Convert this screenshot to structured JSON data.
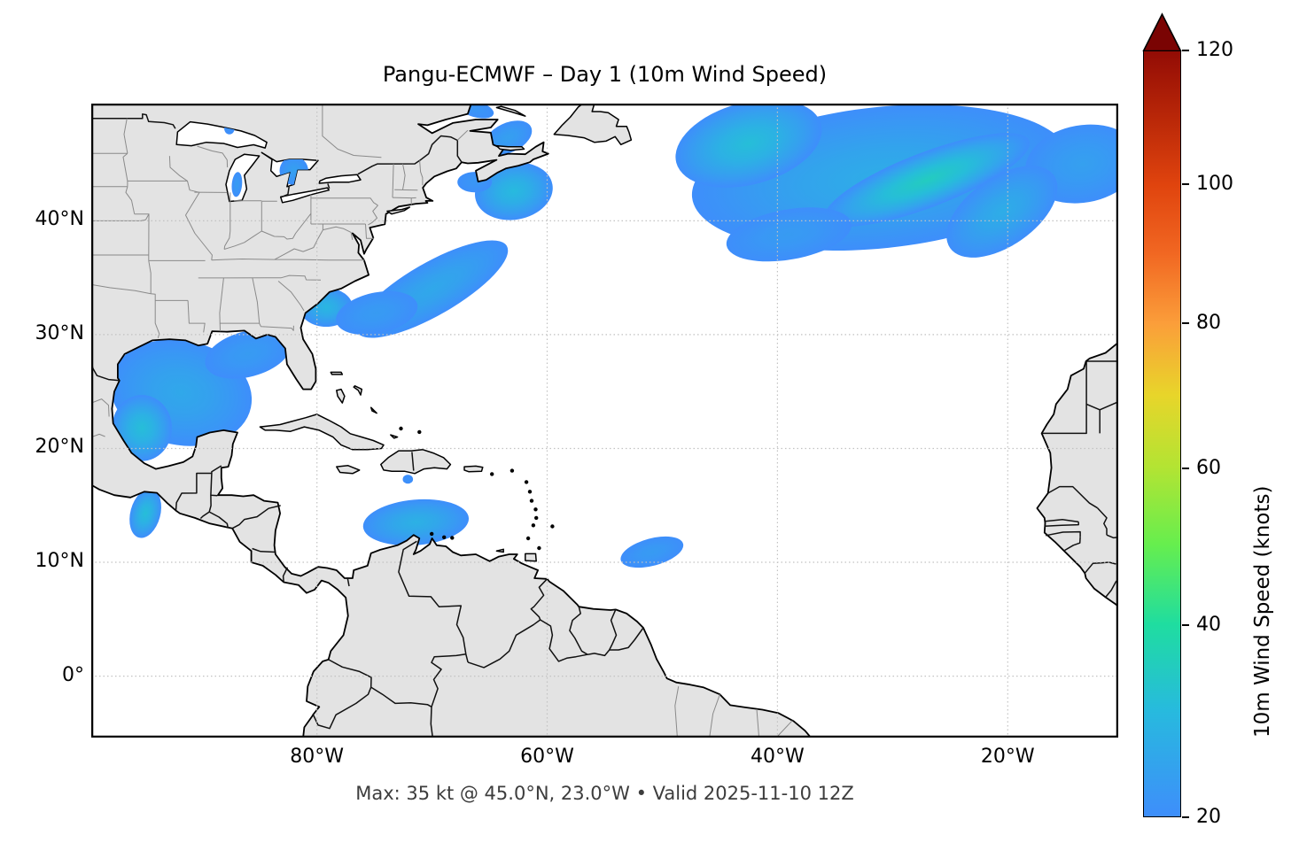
{
  "figure": {
    "title": "Pangu-ECMWF – Day 1 (10m Wind Speed)",
    "caption": "Max: 35 kt @ 45.0°N, 23.0°W • Valid 2025-11-10 12Z",
    "background": "#ffffff"
  },
  "map": {
    "extent": {
      "west": -99.6,
      "east": -10.4,
      "south": -5.4,
      "north": 50.3
    },
    "land_color": "#e3e3e3",
    "ocean_color": "#ffffff",
    "coast_color": "#000000",
    "country_border_color": "#111111",
    "state_border_color": "#8a8a8a",
    "grid_color": "#c2c2c2",
    "frame_color": "#000000"
  },
  "axes": {
    "x_ticks": [
      {
        "label": "80°W",
        "lon": -80
      },
      {
        "label": "60°W",
        "lon": -60
      },
      {
        "label": "40°W",
        "lon": -40
      },
      {
        "label": "20°W",
        "lon": -20
      }
    ],
    "y_ticks": [
      {
        "label": "40°N",
        "lat": 40
      },
      {
        "label": "30°N",
        "lat": 30
      },
      {
        "label": "20°N",
        "lat": 20
      },
      {
        "label": "10°N",
        "lat": 10
      },
      {
        "label": "0°",
        "lat": 0
      }
    ],
    "grid_lons": [
      -80,
      -60,
      -40,
      -20
    ],
    "grid_lats": [
      0,
      10,
      20,
      30,
      40
    ]
  },
  "colorbar": {
    "label": "10m Wind Speed (knots)",
    "units": "knots",
    "min": 20,
    "max": 120,
    "extend": "max",
    "scale_gamma": 0.86,
    "ticks": [
      20,
      40,
      60,
      80,
      100,
      120
    ],
    "stops": [
      {
        "v": 20,
        "c": "#3e8efb"
      },
      {
        "v": 30,
        "c": "#27bade"
      },
      {
        "v": 40,
        "c": "#1fdda0"
      },
      {
        "v": 50,
        "c": "#66ee4e"
      },
      {
        "v": 60,
        "c": "#b2e433"
      },
      {
        "v": 70,
        "c": "#e8d52a"
      },
      {
        "v": 80,
        "c": "#fb9e3a"
      },
      {
        "v": 90,
        "c": "#f16722"
      },
      {
        "v": 100,
        "c": "#e0440e"
      },
      {
        "v": 110,
        "c": "#b92708"
      },
      {
        "v": 120,
        "c": "#930c05"
      }
    ],
    "arrow_color": "#7a0403"
  },
  "chart_data": {
    "type": "heatmap",
    "variable": "10m wind speed",
    "units": "knots",
    "shade_threshold_kt": 20,
    "maximum": {
      "value_kt": 35,
      "lat": 45.0,
      "lon": -23.0
    },
    "valid_time": "2025-11-10 12Z",
    "features": [
      {
        "name": "north-atlantic-storm-main",
        "lon": -31.0,
        "lat": 43.8,
        "rx_deg": 16.5,
        "ry_deg": 6.2,
        "rot_deg": -6,
        "peak_kt": 27
      },
      {
        "name": "north-atlantic-storm-nw-lobe",
        "lon": -42.5,
        "lat": 46.8,
        "rx_deg": 6.5,
        "ry_deg": 3.6,
        "rot_deg": -15,
        "peak_kt": 31
      },
      {
        "name": "north-atlantic-storm-core-band",
        "lon": -27.0,
        "lat": 43.6,
        "rx_deg": 9.5,
        "ry_deg": 2.4,
        "rot_deg": -21,
        "peak_kt": 35
      },
      {
        "name": "north-atlantic-storm-east-arm",
        "lon": -13.5,
        "lat": 45.0,
        "rx_deg": 5.0,
        "ry_deg": 3.4,
        "rot_deg": -10,
        "peak_kt": 24
      },
      {
        "name": "north-atlantic-storm-south-edge",
        "lon": -39.0,
        "lat": 38.8,
        "rx_deg": 5.5,
        "ry_deg": 2.2,
        "rot_deg": -10,
        "peak_kt": 23
      },
      {
        "name": "north-atlantic-storm-se-lobe",
        "lon": -20.5,
        "lat": 40.8,
        "rx_deg": 5.5,
        "ry_deg": 3.0,
        "rot_deg": -35,
        "peak_kt": 27
      },
      {
        "name": "gulf-of-mexico",
        "lon": -91.8,
        "lat": 24.9,
        "rx_deg": 6.2,
        "ry_deg": 4.6,
        "rot_deg": 12,
        "peak_kt": 26
      },
      {
        "name": "bay-of-campeche-core",
        "lon": -95.2,
        "lat": 21.8,
        "rx_deg": 2.6,
        "ry_deg": 2.9,
        "rot_deg": 0,
        "peak_kt": 31
      },
      {
        "name": "gulf-of-mexico-ne",
        "lon": -86.0,
        "lat": 28.3,
        "rx_deg": 3.8,
        "ry_deg": 2.0,
        "rot_deg": -15,
        "peak_kt": 23
      },
      {
        "name": "gulf-stream",
        "lon": -70.0,
        "lat": 34.0,
        "rx_deg": 7.5,
        "ry_deg": 2.3,
        "rot_deg": -30,
        "peak_kt": 26
      },
      {
        "name": "carolina-coast",
        "lon": -79.2,
        "lat": 32.4,
        "rx_deg": 2.3,
        "ry_deg": 1.7,
        "rot_deg": 0,
        "peak_kt": 29
      },
      {
        "name": "gulf-stream-west",
        "lon": -74.8,
        "lat": 31.9,
        "rx_deg": 3.6,
        "ry_deg": 1.8,
        "rot_deg": -12,
        "peak_kt": 23
      },
      {
        "name": "scotian-shelf",
        "lon": -62.9,
        "lat": 42.6,
        "rx_deg": 3.4,
        "ry_deg": 2.5,
        "rot_deg": -10,
        "peak_kt": 30
      },
      {
        "name": "gulf-of-maine-patch",
        "lon": -66.3,
        "lat": 43.4,
        "rx_deg": 1.5,
        "ry_deg": 0.9,
        "rot_deg": 0,
        "peak_kt": 22
      },
      {
        "name": "gulf-of-st-lawrence",
        "lon": -63.4,
        "lat": 47.3,
        "rx_deg": 2.2,
        "ry_deg": 1.3,
        "rot_deg": -25,
        "peak_kt": 24
      },
      {
        "name": "st-lawrence-estuary",
        "lon": -66.2,
        "lat": 49.8,
        "rx_deg": 1.6,
        "ry_deg": 0.7,
        "rot_deg": 15,
        "peak_kt": 22
      },
      {
        "name": "caribbean-colombia-basin",
        "lon": -71.4,
        "lat": 13.5,
        "rx_deg": 4.6,
        "ry_deg": 2.0,
        "rot_deg": -5,
        "peak_kt": 28
      },
      {
        "name": "itcz-atlantic-patch",
        "lon": -50.9,
        "lat": 10.9,
        "rx_deg": 2.8,
        "ry_deg": 1.2,
        "rot_deg": -15,
        "peak_kt": 23
      },
      {
        "name": "tehuantepec-jet",
        "lon": -94.9,
        "lat": 14.3,
        "rx_deg": 1.3,
        "ry_deg": 2.2,
        "rot_deg": 15,
        "peak_kt": 31
      },
      {
        "name": "windward-spot",
        "lon": -72.1,
        "lat": 17.3,
        "rx_deg": 0.45,
        "ry_deg": 0.4,
        "rot_deg": 0,
        "peak_kt": 21
      },
      {
        "name": "lake-michigan-patch",
        "lon": -86.95,
        "lat": 43.2,
        "rx_deg": 0.45,
        "ry_deg": 1.1,
        "rot_deg": 5,
        "peak_kt": 23,
        "lake": true
      },
      {
        "name": "lake-huron-patch",
        "lon": -82.0,
        "lat": 44.4,
        "rx_deg": 1.25,
        "ry_deg": 1.25,
        "rot_deg": 0,
        "peak_kt": 24,
        "lake": true
      },
      {
        "name": "lake-superior-spot",
        "lon": -87.6,
        "lat": 48.1,
        "rx_deg": 0.45,
        "ry_deg": 0.5,
        "rot_deg": 0,
        "peak_kt": 21,
        "lake": true
      }
    ]
  }
}
